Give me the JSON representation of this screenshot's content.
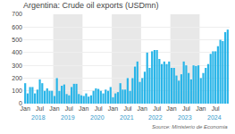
{
  "chart_data": {
    "type": "bar",
    "title": "Argentina: Crude oil exports (USDmn)",
    "categories": [
      "Jan",
      null,
      null,
      null,
      null,
      null,
      "Jul",
      null,
      null,
      null,
      null,
      null,
      "Jan",
      null,
      null,
      null,
      null,
      null,
      "Jul",
      null,
      null,
      null,
      null,
      null,
      "Jan",
      null,
      null,
      null,
      null,
      null,
      "Jul",
      null,
      null,
      null,
      null,
      null,
      "Jan",
      null,
      null,
      null,
      null,
      null,
      "Jul",
      null,
      null,
      null,
      null,
      null,
      "Jan",
      null,
      null,
      null,
      null,
      null,
      "Jul",
      null,
      null,
      null,
      null,
      null,
      "Jan",
      null,
      null,
      null,
      null,
      null,
      "Jul",
      null,
      null,
      null,
      null,
      null,
      "Jan",
      null,
      null,
      null,
      null,
      null,
      "Jul",
      null,
      null,
      null,
      null,
      null
    ],
    "values": [
      160,
      80,
      130,
      130,
      80,
      110,
      190,
      160,
      100,
      120,
      100,
      100,
      60,
      200,
      100,
      140,
      150,
      75,
      65,
      130,
      155,
      155,
      75,
      65,
      60,
      80,
      55,
      65,
      100,
      120,
      115,
      100,
      80,
      110,
      100,
      130,
      50,
      80,
      90,
      160,
      110,
      110,
      200,
      100,
      200,
      290,
      330,
      170,
      200,
      250,
      400,
      280,
      410,
      420,
      420,
      350,
      310,
      330,
      310,
      330,
      280,
      280,
      220,
      180,
      230,
      330,
      300,
      240,
      190,
      300,
      295,
      300,
      200,
      240,
      280,
      310,
      390,
      410,
      410,
      450,
      500,
      490,
      560,
      580
    ],
    "color": "#29b5e8",
    "ylim": [
      0,
      700
    ],
    "yticks": [
      0,
      100,
      200,
      300,
      400,
      500,
      600,
      700
    ],
    "grid": true,
    "annotations": [
      "2018",
      "2019",
      "2020",
      "2021",
      "2022",
      "2023",
      "2024",
      "Source: Ministerio de Economia"
    ]
  }
}
